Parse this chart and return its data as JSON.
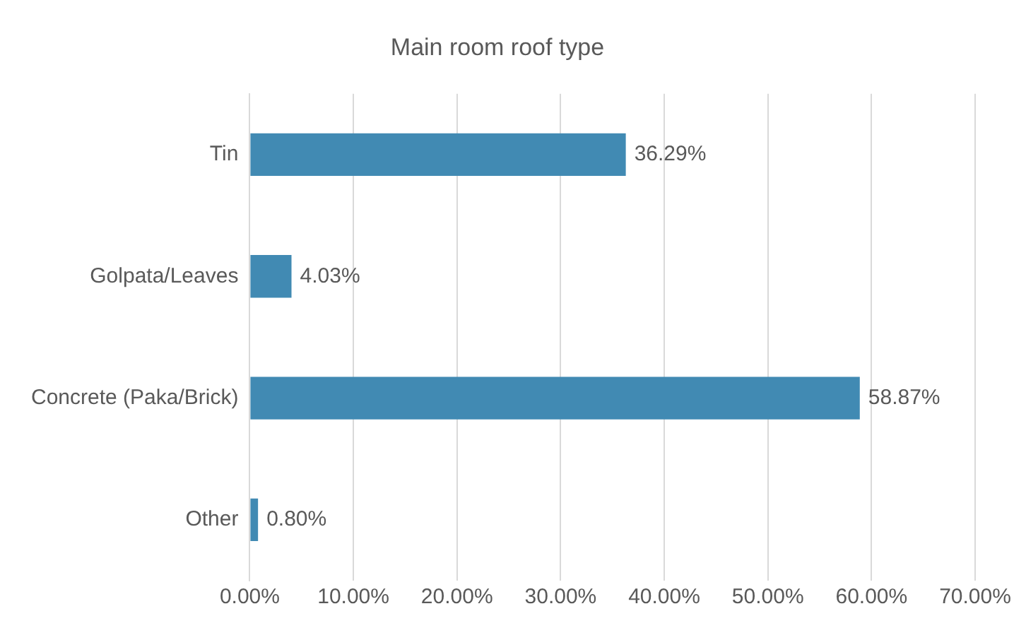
{
  "chart_data": {
    "type": "bar",
    "title": "Main room roof type",
    "orientation": "horizontal",
    "categories": [
      "Tin",
      "Golpata/Leaves",
      "Concrete (Paka/Brick)",
      "Other"
    ],
    "values": [
      36.29,
      4.03,
      58.87,
      0.8
    ],
    "value_labels": [
      "36.29%",
      "4.03%",
      "58.87%",
      "0.80%"
    ],
    "color": "#418ab3",
    "xlim": [
      0,
      70
    ],
    "xticks": [
      {
        "value": 0,
        "label": "0.00%"
      },
      {
        "value": 10,
        "label": "10.00%"
      },
      {
        "value": 20,
        "label": "20.00%"
      },
      {
        "value": 30,
        "label": "30.00%"
      },
      {
        "value": 40,
        "label": "40.00%"
      },
      {
        "value": 50,
        "label": "50.00%"
      },
      {
        "value": 60,
        "label": "60.00%"
      },
      {
        "value": 70,
        "label": "70.00%"
      }
    ],
    "grid": "x",
    "legend": false
  }
}
